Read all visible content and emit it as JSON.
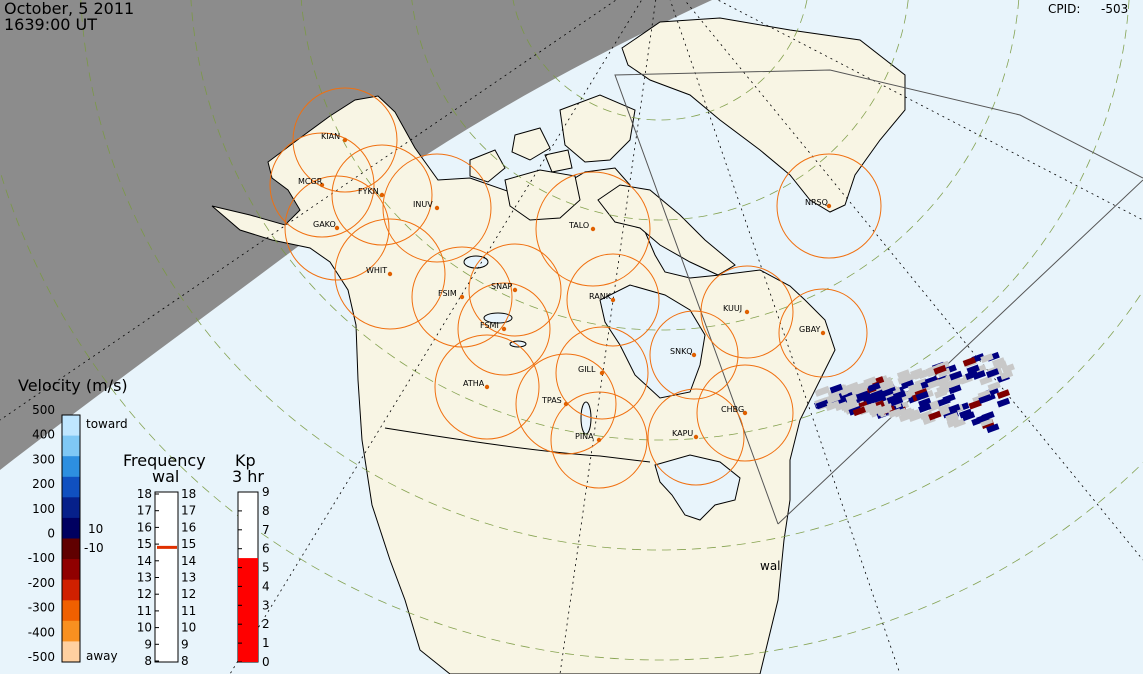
{
  "header": {
    "date": "October, 5 2011",
    "time": "1639:00 UT",
    "cpid_label": "CPID:",
    "cpid_value": "-503"
  },
  "radar_label": "wal",
  "stations": [
    {
      "code": "KIAN"
    },
    {
      "code": "MCGR"
    },
    {
      "code": "FYKN"
    },
    {
      "code": "GAKO"
    },
    {
      "code": "INUV"
    },
    {
      "code": "TALO"
    },
    {
      "code": "NRSQ"
    },
    {
      "code": "WHIT"
    },
    {
      "code": "FSIM"
    },
    {
      "code": "SNAP"
    },
    {
      "code": "FSMI"
    },
    {
      "code": "RANK"
    },
    {
      "code": "KUUJ"
    },
    {
      "code": "GBAY"
    },
    {
      "code": "SNKQ"
    },
    {
      "code": "ATHA"
    },
    {
      "code": "GILL"
    },
    {
      "code": "TPAS"
    },
    {
      "code": "CHBG"
    },
    {
      "code": "KAPU"
    },
    {
      "code": "PINA"
    }
  ],
  "velocity_scale": {
    "title": "Velocity (m/s)",
    "toward_label": "toward",
    "away_label": "away",
    "ticks": [
      "500",
      "400",
      "300",
      "200",
      "100",
      "0",
      "-100",
      "-200",
      "-300",
      "-400",
      "-500"
    ],
    "threshold_pos": "10",
    "threshold_neg": "-10",
    "colors": [
      "#bfe6ff",
      "#7fc8f5",
      "#2d8fe0",
      "#1050c0",
      "#06208a",
      "#000060",
      "#600000",
      "#900000",
      "#d02000",
      "#f06000",
      "#f89020",
      "#ffd0a0"
    ]
  },
  "frequency_scale": {
    "title": "Frequency",
    "subtitle": "wal",
    "ticks_left": [
      "18",
      "17",
      "16",
      "15",
      "14",
      "13",
      "12",
      "11",
      "10",
      "9",
      "8"
    ],
    "ticks_right": [
      "18",
      "17",
      "16",
      "15",
      "14",
      "13",
      "12",
      "11",
      "10",
      "9",
      "8"
    ],
    "current_mhz": 14.8
  },
  "kp_scale": {
    "title": "Kp",
    "subtitle": "3 hr",
    "ticks": [
      "9",
      "8",
      "7",
      "6",
      "5",
      "4",
      "3",
      "2",
      "1",
      "0"
    ],
    "current": 5.5,
    "bar_color": "#ff0000"
  },
  "colors": {
    "night": "#8c8c8c",
    "ocean": "#e8f4fb",
    "land": "#f8f5e4",
    "coast": "#000000",
    "fov_circle": "#f07010",
    "station_dot": "#e06000",
    "scatter_ground": "#c8c8c8",
    "scatter_neg": "#000080",
    "scatter_pos": "#800000"
  }
}
